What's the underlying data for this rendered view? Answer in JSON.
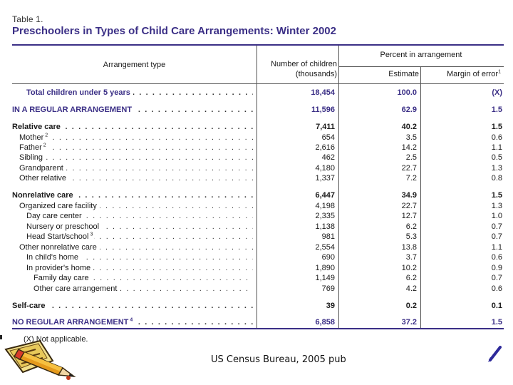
{
  "document": {
    "table_label": "Table 1.",
    "title": "Preschoolers in Types of Child Care Arrangements: Winter 2002",
    "source": "US Census Bureau, 2005 pub",
    "footnote": "(X) Not applicable."
  },
  "header": {
    "arrangement_type": "Arrangement type",
    "number_line1": "Number of children",
    "number_line2": "(thousands)",
    "percent_group": "Percent in arrangement",
    "estimate": "Estimate",
    "margin": "Margin of error",
    "margin_sup": "1"
  },
  "rows": [
    {
      "label": "Total children under 5 years",
      "sup": "",
      "number": "18,454",
      "estimate": "100.0",
      "margin": "(X)"
    },
    {
      "label": "IN A REGULAR ARRANGEMENT",
      "sup": "",
      "number": "11,596",
      "estimate": "62.9",
      "margin": "1.5"
    },
    {
      "label": "Relative care",
      "sup": "",
      "number": "7,411",
      "estimate": "40.2",
      "margin": "1.5"
    },
    {
      "label": "Mother",
      "sup": "2",
      "number": "654",
      "estimate": "3.5",
      "margin": "0.6"
    },
    {
      "label": "Father",
      "sup": "2",
      "number": "2,616",
      "estimate": "14.2",
      "margin": "1.1"
    },
    {
      "label": "Sibling",
      "sup": "",
      "number": "462",
      "estimate": "2.5",
      "margin": "0.5"
    },
    {
      "label": "Grandparent",
      "sup": "",
      "number": "4,180",
      "estimate": "22.7",
      "margin": "1.3"
    },
    {
      "label": "Other relative",
      "sup": "",
      "number": "1,337",
      "estimate": "7.2",
      "margin": "0.8"
    },
    {
      "label": "Nonrelative care",
      "sup": "",
      "number": "6,447",
      "estimate": "34.9",
      "margin": "1.5"
    },
    {
      "label": "Organized care facility",
      "sup": "",
      "number": "4,198",
      "estimate": "22.7",
      "margin": "1.3"
    },
    {
      "label": "Day care center",
      "sup": "",
      "number": "2,335",
      "estimate": "12.7",
      "margin": "1.0"
    },
    {
      "label": "Nursery or preschool",
      "sup": "",
      "number": "1,138",
      "estimate": "6.2",
      "margin": "0.7"
    },
    {
      "label": "Head Start/school",
      "sup": "3",
      "number": "981",
      "estimate": "5.3",
      "margin": "0.7"
    },
    {
      "label": "Other nonrelative care",
      "sup": "",
      "number": "2,554",
      "estimate": "13.8",
      "margin": "1.1"
    },
    {
      "label": "In child's home",
      "sup": "",
      "number": "690",
      "estimate": "3.7",
      "margin": "0.6"
    },
    {
      "label": "In provider's home",
      "sup": "",
      "number": "1,890",
      "estimate": "10.2",
      "margin": "0.9"
    },
    {
      "label": "Family day care",
      "sup": "",
      "number": "1,149",
      "estimate": "6.2",
      "margin": "0.7"
    },
    {
      "label": "Other care arrangement",
      "sup": "",
      "number": "769",
      "estimate": "4.2",
      "margin": "0.6"
    },
    {
      "label": "Self-care",
      "sup": "",
      "number": "39",
      "estimate": "0.2",
      "margin": "0.1"
    },
    {
      "label": "NO REGULAR ARRANGEMENT",
      "sup": "4",
      "number": "6,858",
      "estimate": "37.2",
      "margin": "1.5"
    }
  ],
  "colors": {
    "accent": "#3b2f86",
    "rule": "#555555"
  },
  "icons": {
    "decoration_left": "pencil-icon",
    "decoration_right": "pen-icon"
  }
}
